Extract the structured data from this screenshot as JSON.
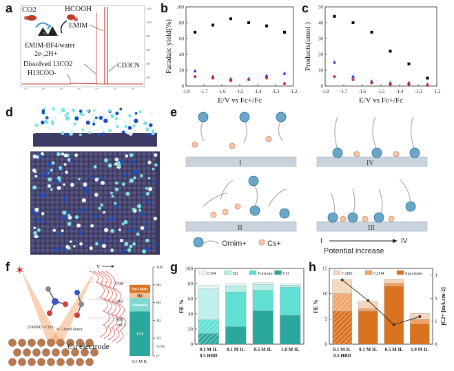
{
  "panel_labels": {
    "a": "a",
    "b": "b",
    "c": "c",
    "d": "d",
    "e": "e",
    "f": "f",
    "g": "g",
    "h": "h"
  },
  "panel_a": {
    "co2": "CO2",
    "hcooh": "HCOOH",
    "emim": "EMIM",
    "electrolyte": "EMIM-BF4/water",
    "electrons": "2e-,2H+",
    "dissolved": "Dissolved 13CO2",
    "formate": "H13COO-",
    "solvent": "CD3CN",
    "catalyst": "Cu"
  },
  "panel_e": {
    "box_labels": [
      "I",
      "II",
      "III",
      "IV"
    ],
    "legend_omim": "Omim+",
    "legend_cs": "Cs+",
    "arrow_start": "I",
    "arrow_end": "IV",
    "arrow_caption": "Potential increase"
  },
  "panel_f": {
    "electrode": "Cu electrode",
    "emim_co2": "[EMIM]+-CO2-",
    "hbond": "H – bond donor",
    "wavenumbers": [
      "1348",
      "1405",
      "1456"
    ],
    "unit": "cm-1",
    "v_label": "V",
    "bar_segments": [
      {
        "label": "Succinate",
        "value": 9,
        "color": "#d9731f"
      },
      {
        "label": "H2",
        "value": 6,
        "color": "#f2c39a"
      },
      {
        "label": "Formate",
        "value": 15,
        "color": "#7fd9cf"
      },
      {
        "label": "CO",
        "value": 50,
        "color": "#2ba89c"
      }
    ],
    "xlabel": "0.5 M IL",
    "ylabel": "% FE",
    "yticks": [
      0,
      20,
      40,
      60,
      80,
      100
    ]
  },
  "chart_data": [
    {
      "id": "b",
      "type": "scatter",
      "xlabel": "E/V vs Fc+/Fc",
      "ylabel": "Faradaic yield(%)",
      "xlim": [
        -1.8,
        -1.2
      ],
      "ylim": [
        0,
        100
      ],
      "xticks": [
        -1.8,
        -1.7,
        -1.6,
        -1.5,
        -1.4,
        -1.3,
        -1.2
      ],
      "yticks": [
        0,
        20,
        40,
        60,
        80,
        100
      ],
      "series": [
        {
          "color": "#000000",
          "x": [
            -1.75,
            -1.65,
            -1.55,
            -1.45,
            -1.35,
            -1.25
          ],
          "y": [
            68,
            77,
            85,
            80,
            76,
            68
          ]
        },
        {
          "color": "#2a3fd6",
          "x": [
            -1.75,
            -1.65,
            -1.55,
            -1.45,
            -1.35,
            -1.25
          ],
          "y": [
            19,
            12,
            9,
            9,
            13,
            16
          ]
        },
        {
          "color": "#d61f3c",
          "x": [
            -1.75,
            -1.65,
            -1.55,
            -1.45,
            -1.35,
            -1.25
          ],
          "y": [
            12,
            10,
            7,
            8,
            10,
            3
          ]
        }
      ]
    },
    {
      "id": "c",
      "type": "scatter",
      "xlabel": "E/V vs Fc+/Fc",
      "ylabel": "Products(umol )",
      "xlim": [
        -1.8,
        -1.2
      ],
      "ylim": [
        0,
        50
      ],
      "xticks": [
        -1.8,
        -1.7,
        -1.6,
        -1.5,
        -1.4,
        -1.3,
        -1.2
      ],
      "yticks": [
        0,
        10,
        20,
        30,
        40,
        50
      ],
      "series": [
        {
          "color": "#000000",
          "x": [
            -1.75,
            -1.65,
            -1.55,
            -1.45,
            -1.35,
            -1.25
          ],
          "y": [
            44,
            40,
            34,
            22,
            14,
            5
          ]
        },
        {
          "color": "#2a3fd6",
          "x": [
            -1.75,
            -1.65,
            -1.55,
            -1.45,
            -1.35,
            -1.25
          ],
          "y": [
            15,
            6,
            3,
            2,
            2,
            1
          ]
        },
        {
          "color": "#d61f3c",
          "x": [
            -1.75,
            -1.65,
            -1.55,
            -1.45,
            -1.35,
            -1.25
          ],
          "y": [
            6,
            4,
            2,
            1,
            1,
            0.5
          ]
        }
      ]
    },
    {
      "id": "g",
      "type": "bar",
      "ylabel": "FE %",
      "ylim": [
        0,
        100
      ],
      "yticks": [
        0,
        20,
        40,
        60,
        80,
        100
      ],
      "categories": [
        "0.1 M IL\n0.5 HBD",
        "0.1 M IL",
        "0.5 M IL",
        "1.0 M IL"
      ],
      "legend": [
        "CH4",
        "H2",
        "Formate",
        "CO"
      ],
      "series": [
        {
          "name": "CO",
          "color": "#2ba89c",
          "values": [
            14,
            23,
            44,
            38
          ]
        },
        {
          "name": "Formate",
          "color": "#5fe0d3",
          "values": [
            18,
            46,
            27,
            37
          ]
        },
        {
          "name": "H2",
          "color": "#b9efe9",
          "values": [
            41,
            8,
            8,
            3
          ]
        },
        {
          "name": "CH4",
          "color": "#e6f8f6",
          "values": [
            5,
            3,
            2,
            2
          ]
        }
      ],
      "hatched_first_category": true
    },
    {
      "id": "h",
      "type": "bar",
      "ylabel": "FE %",
      "ylabel2": "jC2+ [mA.cm-2]",
      "ylim": [
        0,
        15
      ],
      "yticks": [
        0,
        5,
        10,
        15
      ],
      "y2lim": [
        0,
        3.3
      ],
      "y2ticks": [
        0,
        1,
        2,
        3
      ],
      "categories": [
        "0.1 M IL\n0.5 HBD",
        "0.1 M IL",
        "0.5 M IL",
        "1.0 M IL"
      ],
      "legend": [
        "C2H6",
        "C2H4",
        "Succinate"
      ],
      "series": [
        {
          "name": "Succinate",
          "color": "#d9731f",
          "values": [
            6.5,
            6.5,
            11.5,
            4
          ]
        },
        {
          "name": "C2H4",
          "color": "#f0a46a",
          "values": [
            3.5,
            0.5,
            0.6,
            0.9
          ]
        },
        {
          "name": "C2H6",
          "color": "#f7d5b8",
          "values": [
            2.8,
            1.5,
            0.8,
            1.2
          ]
        }
      ],
      "line": {
        "values": [
          2.8,
          1.9,
          0.85,
          1.2
        ],
        "color": "#333333"
      },
      "hatched_first_category": true
    }
  ]
}
